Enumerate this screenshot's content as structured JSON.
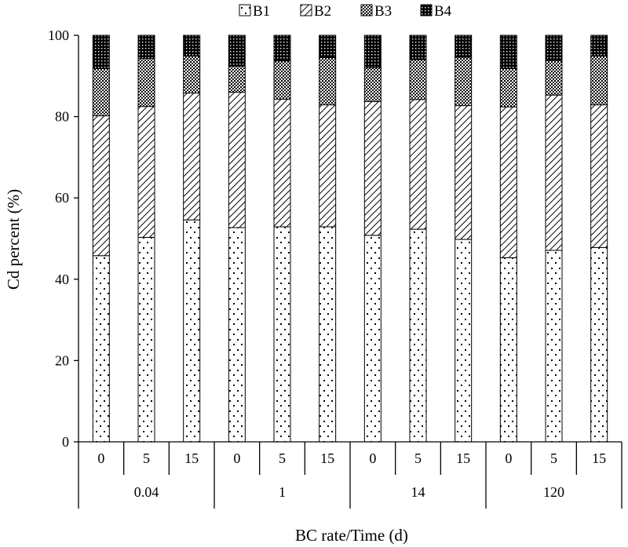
{
  "chart_data": {
    "type": "bar",
    "stacked": true,
    "title": "",
    "xlabel": "BC rate/Time (d)",
    "ylabel": "Cd percent (%)",
    "ylim": [
      0,
      100
    ],
    "yticks": [
      0,
      20,
      40,
      60,
      80,
      100
    ],
    "grid": false,
    "legend_position": "top",
    "groups": [
      {
        "label": "0.04",
        "categories": [
          "0",
          "5",
          "15"
        ]
      },
      {
        "label": "1",
        "categories": [
          "0",
          "5",
          "15"
        ]
      },
      {
        "label": "14",
        "categories": [
          "0",
          "5",
          "15"
        ]
      },
      {
        "label": "120",
        "categories": [
          "0",
          "5",
          "15"
        ]
      }
    ],
    "series": [
      {
        "name": "B1",
        "pattern": "dots",
        "values": [
          45.8,
          50.3,
          54.6,
          52.7,
          52.9,
          52.9,
          50.8,
          52.3,
          49.8,
          45.3,
          47.1,
          47.8
        ]
      },
      {
        "name": "B2",
        "pattern": "hatch",
        "values": [
          34.4,
          32.2,
          31.2,
          33.3,
          31.4,
          30.0,
          32.9,
          31.9,
          32.9,
          37.1,
          38.2,
          35.1
        ]
      },
      {
        "name": "B3",
        "pattern": "cross",
        "values": [
          11.6,
          11.8,
          9.1,
          6.4,
          9.4,
          11.6,
          8.3,
          9.8,
          11.9,
          9.4,
          8.5,
          12.0
        ]
      },
      {
        "name": "B4",
        "pattern": "dense",
        "values": [
          8.2,
          5.7,
          5.1,
          7.6,
          6.3,
          5.5,
          8.0,
          6.0,
          5.4,
          8.2,
          6.2,
          5.1
        ]
      }
    ]
  }
}
